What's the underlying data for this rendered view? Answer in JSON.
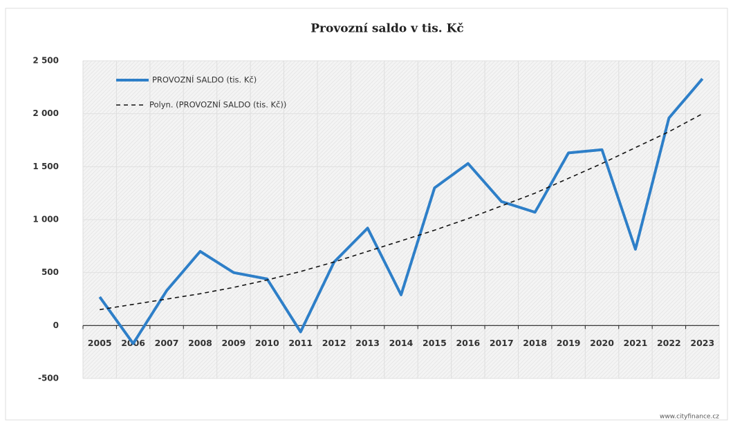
{
  "chart_data": {
    "type": "line",
    "title": "Provozní saldo v tis. Kč",
    "categories": [
      "2005",
      "2006",
      "2007",
      "2008",
      "2009",
      "2010",
      "2011",
      "2012",
      "2013",
      "2014",
      "2015",
      "2016",
      "2017",
      "2018",
      "2019",
      "2020",
      "2021",
      "2022",
      "2023"
    ],
    "series": [
      {
        "name": "PROVOZNÍ SALDO (tis. Kč)",
        "color": "#2e7fc8",
        "dash": "solid",
        "values": [
          270,
          -170,
          330,
          700,
          500,
          440,
          -60,
          600,
          920,
          290,
          1300,
          1530,
          1170,
          1070,
          1630,
          1660,
          720,
          1960,
          2330
        ]
      },
      {
        "name": "Polyn. (PROVOZNÍ SALDO (tis. Kč))",
        "color": "#111111",
        "dash": "dashed",
        "values": [
          150,
          200,
          250,
          300,
          360,
          430,
          510,
          600,
          700,
          800,
          900,
          1010,
          1130,
          1250,
          1390,
          1530,
          1680,
          1830,
          2000
        ]
      }
    ],
    "ylim": [
      -500,
      2500
    ],
    "yticks": [
      {
        "value": 2500,
        "label": "2 500"
      },
      {
        "value": 2000,
        "label": "2 000"
      },
      {
        "value": 1500,
        "label": "1 500"
      },
      {
        "value": 1000,
        "label": "1 000"
      },
      500,
      0,
      -500
    ],
    "grid": true,
    "legend": "top-left",
    "source": "www.cityfinance.cz"
  }
}
